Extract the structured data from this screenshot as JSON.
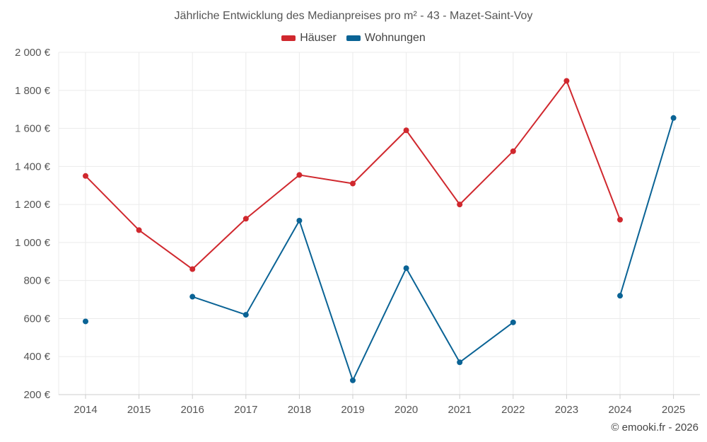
{
  "chart_data": {
    "type": "line",
    "title": "Jährliche Entwicklung des Medianpreises pro m² - 43 - Mazet-Saint-Voy",
    "categories": [
      "2014",
      "2015",
      "2016",
      "2017",
      "2018",
      "2019",
      "2020",
      "2021",
      "2022",
      "2023",
      "2024",
      "2025"
    ],
    "ylim": [
      200,
      2000
    ],
    "yticks": [
      200,
      400,
      600,
      800,
      1000,
      1200,
      1400,
      1600,
      1800,
      2000
    ],
    "ytick_labels": [
      "200 €",
      "400 €",
      "600 €",
      "800 €",
      "1 000 €",
      "1 200 €",
      "1 400 €",
      "1 600 €",
      "1 800 €",
      "2 000 €"
    ],
    "grid": true,
    "legend_position": "top-center",
    "series": [
      {
        "name": "Häuser",
        "color": "#d0282e",
        "values": [
          1350,
          1065,
          860,
          1125,
          1355,
          1310,
          1590,
          1200,
          1480,
          1850,
          1120,
          null
        ]
      },
      {
        "name": "Wohnungen",
        "color": "#0a6395",
        "values": [
          585,
          null,
          715,
          620,
          1115,
          275,
          865,
          370,
          580,
          null,
          720,
          1655
        ]
      }
    ]
  },
  "footer": {
    "credit": "© emooki.fr - 2026"
  }
}
